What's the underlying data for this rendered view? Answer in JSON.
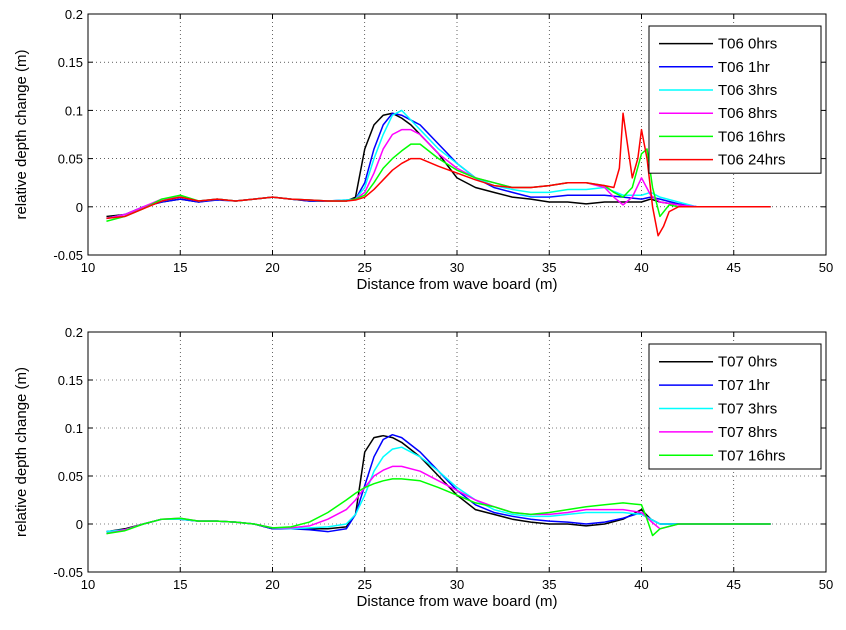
{
  "chart_data": [
    {
      "type": "line",
      "xlabel": "Distance from wave board (m)",
      "ylabel": "relative depth change (m)",
      "xlim": [
        10,
        50
      ],
      "ylim": [
        -0.05,
        0.2
      ],
      "xticks": [
        10,
        15,
        20,
        25,
        30,
        35,
        40,
        45,
        50
      ],
      "yticks": [
        -0.05,
        0,
        0.05,
        0.1,
        0.15,
        0.2
      ],
      "xtick_labels": [
        "10",
        "15",
        "20",
        "25",
        "30",
        "35",
        "40",
        "45",
        "50"
      ],
      "ytick_labels": [
        "-0.05",
        "0",
        "0.05",
        "0.1",
        "0.15",
        "0.2"
      ],
      "grid": true,
      "legend": "top-right",
      "series": [
        {
          "name": "T06 0hrs",
          "color": "#000000",
          "x": [
            11,
            12,
            13,
            14,
            15,
            16,
            17,
            18,
            19,
            20,
            21,
            22,
            23,
            24,
            24.5,
            25,
            25.5,
            26,
            26.5,
            27,
            27.5,
            28,
            29,
            30,
            31,
            32,
            33,
            34,
            35,
            36,
            37,
            38,
            39,
            40,
            40.5,
            41,
            42,
            43,
            44,
            45,
            46,
            47
          ],
          "y": [
            -0.01,
            -0.008,
            0,
            0.005,
            0.008,
            0.005,
            0.008,
            0.006,
            0.008,
            0.01,
            0.008,
            0.006,
            0.006,
            0.006,
            0.01,
            0.06,
            0.085,
            0.095,
            0.097,
            0.092,
            0.085,
            0.075,
            0.055,
            0.03,
            0.02,
            0.015,
            0.01,
            0.008,
            0.005,
            0.005,
            0.003,
            0.005,
            0.005,
            0.005,
            0.008,
            0.005,
            0.002,
            0,
            0,
            0,
            0,
            0
          ]
        },
        {
          "name": "T06 1hr",
          "color": "#0000ff",
          "x": [
            11,
            12,
            13,
            14,
            15,
            16,
            17,
            18,
            19,
            20,
            21,
            22,
            23,
            24,
            24.5,
            25,
            25.5,
            26,
            26.5,
            27,
            27.5,
            28,
            29,
            30,
            31,
            32,
            33,
            34,
            35,
            36,
            37,
            38,
            39,
            40,
            40.5,
            41,
            42,
            43,
            44,
            45,
            46,
            47
          ],
          "y": [
            -0.012,
            -0.008,
            0,
            0.005,
            0.008,
            0.005,
            0.007,
            0.006,
            0.008,
            0.01,
            0.008,
            0.006,
            0.006,
            0.007,
            0.008,
            0.025,
            0.06,
            0.085,
            0.097,
            0.095,
            0.09,
            0.085,
            0.065,
            0.045,
            0.03,
            0.02,
            0.015,
            0.01,
            0.01,
            0.012,
            0.012,
            0.012,
            0.01,
            0.008,
            0.01,
            0.008,
            0.003,
            0,
            0,
            0,
            0,
            0
          ]
        },
        {
          "name": "T06 3hrs",
          "color": "#00ffff",
          "x": [
            11,
            12,
            13,
            14,
            15,
            16,
            17,
            18,
            19,
            20,
            21,
            22,
            23,
            24,
            24.5,
            25,
            25.5,
            26,
            26.5,
            27,
            27.5,
            28,
            29,
            30,
            31,
            32,
            33,
            34,
            35,
            36,
            37,
            38,
            39,
            40,
            40.5,
            41,
            42,
            43,
            44,
            45,
            46,
            47
          ],
          "y": [
            -0.012,
            -0.008,
            0,
            0.006,
            0.01,
            0.006,
            0.008,
            0.006,
            0.008,
            0.01,
            0.008,
            0.007,
            0.006,
            0.007,
            0.008,
            0.02,
            0.05,
            0.075,
            0.095,
            0.1,
            0.09,
            0.08,
            0.06,
            0.045,
            0.03,
            0.022,
            0.018,
            0.015,
            0.015,
            0.018,
            0.018,
            0.02,
            0.012,
            0.012,
            0.015,
            0.01,
            0.005,
            0,
            0,
            0,
            0,
            0
          ]
        },
        {
          "name": "T06 8hrs",
          "color": "#ff00ff",
          "x": [
            11,
            12,
            13,
            14,
            15,
            16,
            17,
            18,
            19,
            20,
            21,
            22,
            23,
            24,
            24.5,
            25,
            25.5,
            26,
            26.5,
            27,
            27.5,
            28,
            29,
            30,
            31,
            32,
            33,
            34,
            35,
            36,
            37,
            38,
            38.5,
            39,
            39.5,
            40,
            40.5,
            41,
            42,
            43,
            44,
            45,
            46,
            47
          ],
          "y": [
            -0.012,
            -0.008,
            0,
            0.008,
            0.01,
            0.006,
            0.008,
            0.006,
            0.008,
            0.01,
            0.008,
            0.007,
            0.006,
            0.006,
            0.008,
            0.015,
            0.035,
            0.06,
            0.075,
            0.08,
            0.08,
            0.075,
            0.055,
            0.04,
            0.03,
            0.025,
            0.02,
            0.02,
            0.022,
            0.025,
            0.025,
            0.02,
            0.01,
            0.002,
            0.01,
            0.03,
            0.012,
            0.005,
            0.002,
            0,
            0,
            0,
            0,
            0
          ]
        },
        {
          "name": "T06 16hrs",
          "color": "#00ff00",
          "x": [
            11,
            12,
            13,
            14,
            15,
            16,
            17,
            18,
            19,
            20,
            21,
            22,
            23,
            24,
            24.5,
            25,
            25.5,
            26,
            26.5,
            27,
            27.5,
            28,
            29,
            30,
            31,
            32,
            33,
            34,
            35,
            36,
            37,
            38,
            38.5,
            39,
            39.5,
            40,
            40.3,
            40.6,
            41,
            41.5,
            42,
            43,
            44,
            45,
            46,
            47
          ],
          "y": [
            -0.015,
            -0.01,
            -0.002,
            0.008,
            0.012,
            0.006,
            0.008,
            0.006,
            0.008,
            0.01,
            0.008,
            0.007,
            0.006,
            0.006,
            0.008,
            0.012,
            0.025,
            0.04,
            0.05,
            0.058,
            0.065,
            0.065,
            0.05,
            0.038,
            0.03,
            0.025,
            0.02,
            0.02,
            0.022,
            0.025,
            0.025,
            0.022,
            0.015,
            0.01,
            0.02,
            0.055,
            0.06,
            0.02,
            -0.01,
            0.002,
            0,
            0,
            0,
            0,
            0,
            0
          ]
        },
        {
          "name": "T06 24hrs",
          "color": "#ff0000",
          "x": [
            11,
            12,
            13,
            14,
            15,
            16,
            17,
            18,
            19,
            20,
            21,
            22,
            23,
            24,
            24.5,
            25,
            25.5,
            26,
            26.5,
            27,
            27.5,
            28,
            29,
            30,
            31,
            32,
            33,
            34,
            35,
            36,
            37,
            38,
            38.5,
            38.8,
            39,
            39.2,
            39.5,
            39.8,
            40,
            40.3,
            40.6,
            40.9,
            41.2,
            41.5,
            42,
            43,
            44,
            45,
            46,
            47
          ],
          "y": [
            -0.012,
            -0.01,
            -0.002,
            0.006,
            0.01,
            0.006,
            0.008,
            0.006,
            0.008,
            0.01,
            0.008,
            0.007,
            0.006,
            0.006,
            0.007,
            0.01,
            0.018,
            0.028,
            0.038,
            0.045,
            0.05,
            0.05,
            0.042,
            0.035,
            0.028,
            0.022,
            0.02,
            0.02,
            0.022,
            0.025,
            0.025,
            0.022,
            0.02,
            0.04,
            0.097,
            0.07,
            0.03,
            0.05,
            0.08,
            0.05,
            0.0,
            -0.03,
            -0.02,
            -0.005,
            0,
            0,
            0,
            0,
            0,
            0
          ]
        }
      ]
    },
    {
      "type": "line",
      "xlabel": "Distance from wave board (m)",
      "ylabel": "relative depth change (m)",
      "xlim": [
        10,
        50
      ],
      "ylim": [
        -0.05,
        0.2
      ],
      "xticks": [
        10,
        15,
        20,
        25,
        30,
        35,
        40,
        45,
        50
      ],
      "yticks": [
        -0.05,
        0,
        0.05,
        0.1,
        0.15,
        0.2
      ],
      "xtick_labels": [
        "10",
        "15",
        "20",
        "25",
        "30",
        "35",
        "40",
        "45",
        "50"
      ],
      "ytick_labels": [
        "-0.05",
        "0",
        "0.05",
        "0.1",
        "0.15",
        "0.2"
      ],
      "grid": true,
      "legend": "top-right",
      "series": [
        {
          "name": "T07 0hrs",
          "color": "#000000",
          "x": [
            11,
            12,
            13,
            14,
            15,
            16,
            17,
            18,
            19,
            20,
            21,
            22,
            23,
            24,
            24.5,
            25,
            25.5,
            26,
            26.5,
            27,
            28,
            29,
            30,
            31,
            32,
            33,
            34,
            35,
            36,
            37,
            38,
            39,
            40,
            40.5,
            41,
            42,
            43,
            44,
            45,
            46,
            47
          ],
          "y": [
            -0.008,
            -0.005,
            0,
            0.005,
            0.005,
            0.003,
            0.003,
            0.002,
            0,
            -0.005,
            -0.005,
            -0.005,
            -0.005,
            -0.003,
            0.01,
            0.075,
            0.09,
            0.092,
            0.09,
            0.085,
            0.07,
            0.05,
            0.03,
            0.015,
            0.01,
            0.005,
            0.002,
            0,
            0,
            -0.002,
            0,
            0.005,
            0.015,
            0.005,
            0,
            0,
            0,
            0,
            0,
            0,
            0
          ]
        },
        {
          "name": "T07 1hr",
          "color": "#0000ff",
          "x": [
            11,
            12,
            13,
            14,
            15,
            16,
            17,
            18,
            19,
            20,
            21,
            22,
            23,
            24,
            24.5,
            25,
            25.5,
            26,
            26.5,
            27,
            28,
            29,
            30,
            31,
            32,
            33,
            34,
            35,
            36,
            37,
            38,
            39,
            40,
            40.5,
            41,
            42,
            43,
            44,
            45,
            46,
            47
          ],
          "y": [
            -0.008,
            -0.006,
            0,
            0.005,
            0.005,
            0.003,
            0.003,
            0.002,
            0,
            -0.005,
            -0.005,
            -0.006,
            -0.008,
            -0.005,
            0.01,
            0.04,
            0.07,
            0.088,
            0.093,
            0.09,
            0.075,
            0.055,
            0.035,
            0.02,
            0.012,
            0.008,
            0.005,
            0.003,
            0.002,
            0,
            0.002,
            0.006,
            0.012,
            0.005,
            0,
            0,
            0,
            0,
            0,
            0,
            0
          ]
        },
        {
          "name": "T07 3hrs",
          "color": "#00ffff",
          "x": [
            11,
            12,
            13,
            14,
            15,
            16,
            17,
            18,
            19,
            20,
            21,
            22,
            23,
            24,
            24.5,
            25,
            25.5,
            26,
            26.5,
            27,
            28,
            29,
            30,
            31,
            32,
            33,
            34,
            35,
            36,
            37,
            38,
            39,
            40,
            40.5,
            41,
            42,
            43,
            44,
            45,
            46,
            47
          ],
          "y": [
            -0.008,
            -0.006,
            0,
            0.005,
            0.005,
            0.003,
            0.003,
            0.002,
            0,
            -0.004,
            -0.005,
            -0.004,
            -0.003,
            0,
            0.01,
            0.03,
            0.055,
            0.07,
            0.078,
            0.08,
            0.07,
            0.055,
            0.038,
            0.025,
            0.015,
            0.01,
            0.008,
            0.008,
            0.01,
            0.012,
            0.012,
            0.012,
            0.01,
            0.005,
            0,
            0,
            0,
            0,
            0,
            0,
            0
          ]
        },
        {
          "name": "T07 8hrs",
          "color": "#ff00ff",
          "x": [
            11,
            12,
            13,
            14,
            15,
            16,
            17,
            18,
            19,
            20,
            21,
            22,
            23,
            24,
            24.5,
            25,
            25.5,
            26,
            26.5,
            27,
            28,
            29,
            30,
            31,
            32,
            33,
            34,
            35,
            36,
            37,
            38,
            39,
            40,
            40.5,
            41,
            42,
            43,
            44,
            45,
            46,
            47
          ],
          "y": [
            -0.01,
            -0.006,
            0,
            0.005,
            0.006,
            0.003,
            0.003,
            0.002,
            0,
            -0.004,
            -0.004,
            -0.002,
            0.005,
            0.015,
            0.025,
            0.038,
            0.05,
            0.056,
            0.06,
            0.06,
            0.055,
            0.045,
            0.035,
            0.025,
            0.018,
            0.012,
            0.01,
            0.01,
            0.012,
            0.015,
            0.015,
            0.015,
            0.012,
            0.003,
            -0.005,
            0,
            0,
            0,
            0,
            0,
            0
          ]
        },
        {
          "name": "T07 16hrs",
          "color": "#00ff00",
          "x": [
            11,
            12,
            13,
            14,
            15,
            16,
            17,
            18,
            19,
            20,
            21,
            22,
            23,
            24,
            24.5,
            25,
            25.5,
            26,
            26.5,
            27,
            28,
            29,
            30,
            31,
            32,
            33,
            34,
            35,
            36,
            37,
            38,
            39,
            40,
            40.3,
            40.6,
            41,
            42,
            43,
            44,
            45,
            46,
            47
          ],
          "y": [
            -0.01,
            -0.007,
            0,
            0.005,
            0.006,
            0.003,
            0.003,
            0.002,
            0,
            -0.004,
            -0.003,
            0.002,
            0.012,
            0.025,
            0.032,
            0.038,
            0.042,
            0.045,
            0.047,
            0.047,
            0.045,
            0.038,
            0.03,
            0.022,
            0.018,
            0.012,
            0.01,
            0.012,
            0.015,
            0.018,
            0.02,
            0.022,
            0.02,
            0.005,
            -0.012,
            -0.005,
            0,
            0,
            0,
            0,
            0,
            0
          ]
        }
      ]
    }
  ]
}
